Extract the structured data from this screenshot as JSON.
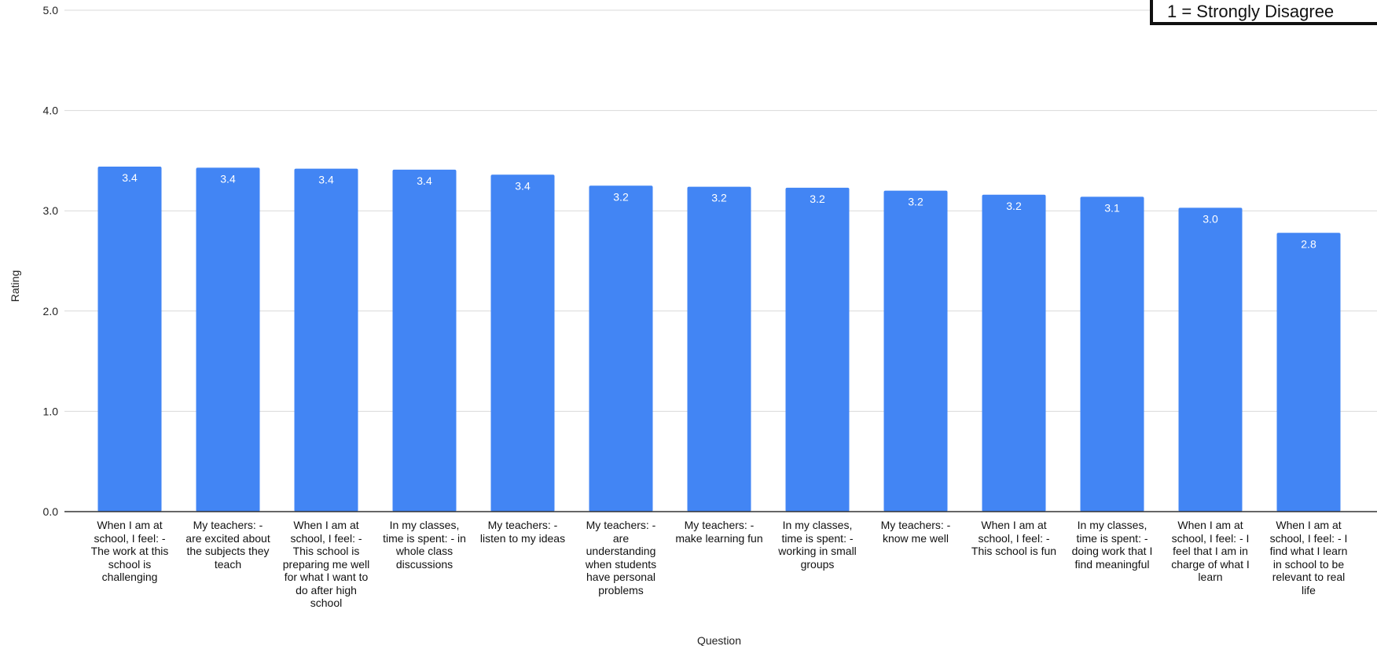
{
  "chart_data": {
    "type": "bar",
    "xlabel": "Question",
    "ylabel": "Rating",
    "ylim": [
      0,
      5
    ],
    "yticks": [
      "0.0",
      "1.0",
      "2.0",
      "3.0",
      "4.0",
      "5.0"
    ],
    "grid": true,
    "bar_color": "#4285f4",
    "categories": [
      "When I am at school, I feel: - The work at this school is challenging",
      "My teachers: - are excited about the subjects they teach",
      "When I am at school, I feel: - This school is preparing me well for what I want to do after high school",
      "In my classes, time is spent: - in whole class discussions",
      "My teachers: - listen to my ideas",
      "My teachers: - are understanding when students have personal problems",
      "My teachers: - make learning fun",
      "In my classes, time is spent: - working in small groups",
      "My teachers: - know me well",
      "When I am at school, I feel: - This school is fun",
      "In my classes, time is spent: - doing work that I find meaningful",
      "When I am at school, I feel: - I feel that I am in charge of what I learn",
      "When I am at school, I feel: - I find what I learn in school to be relevant to real life"
    ],
    "category_lines": [
      [
        "When I am at",
        "school, I feel: -",
        "The work at this",
        "school is",
        "challenging"
      ],
      [
        "My teachers: -",
        "are excited about",
        "the subjects they",
        "teach"
      ],
      [
        "When I am at",
        "school, I feel: -",
        "This school is",
        "preparing me well",
        "for what I want to",
        "do after high",
        "school"
      ],
      [
        "In my classes,",
        "time is spent: - in",
        "whole class",
        "discussions"
      ],
      [
        "My teachers: -",
        "listen to my ideas"
      ],
      [
        "My teachers: -",
        "are",
        "understanding",
        "when students",
        "have personal",
        "problems"
      ],
      [
        "My teachers: -",
        "make learning fun"
      ],
      [
        "In my classes,",
        "time is spent: -",
        "working in small",
        "groups"
      ],
      [
        "My teachers: -",
        "know me well"
      ],
      [
        "When I am at",
        "school, I feel: -",
        "This school is fun"
      ],
      [
        "In my classes,",
        "time is spent: -",
        "doing work that I",
        "find meaningful"
      ],
      [
        "When I am at",
        "school, I feel: - I",
        "feel that I am in",
        "charge of what I",
        "learn"
      ],
      [
        "When I am at",
        "school, I feel: - I",
        "find what I learn",
        "in school to be",
        "relevant to real",
        "life"
      ]
    ],
    "values": [
      3.44,
      3.43,
      3.42,
      3.41,
      3.36,
      3.25,
      3.24,
      3.23,
      3.2,
      3.16,
      3.14,
      3.03,
      2.78
    ],
    "value_labels": [
      "3.4",
      "3.4",
      "3.4",
      "3.4",
      "3.4",
      "3.2",
      "3.2",
      "3.2",
      "3.2",
      "3.2",
      "3.1",
      "3.0",
      "2.8"
    ],
    "legend": {
      "text": "1 = Strongly Disagree",
      "position": "top-right"
    }
  }
}
